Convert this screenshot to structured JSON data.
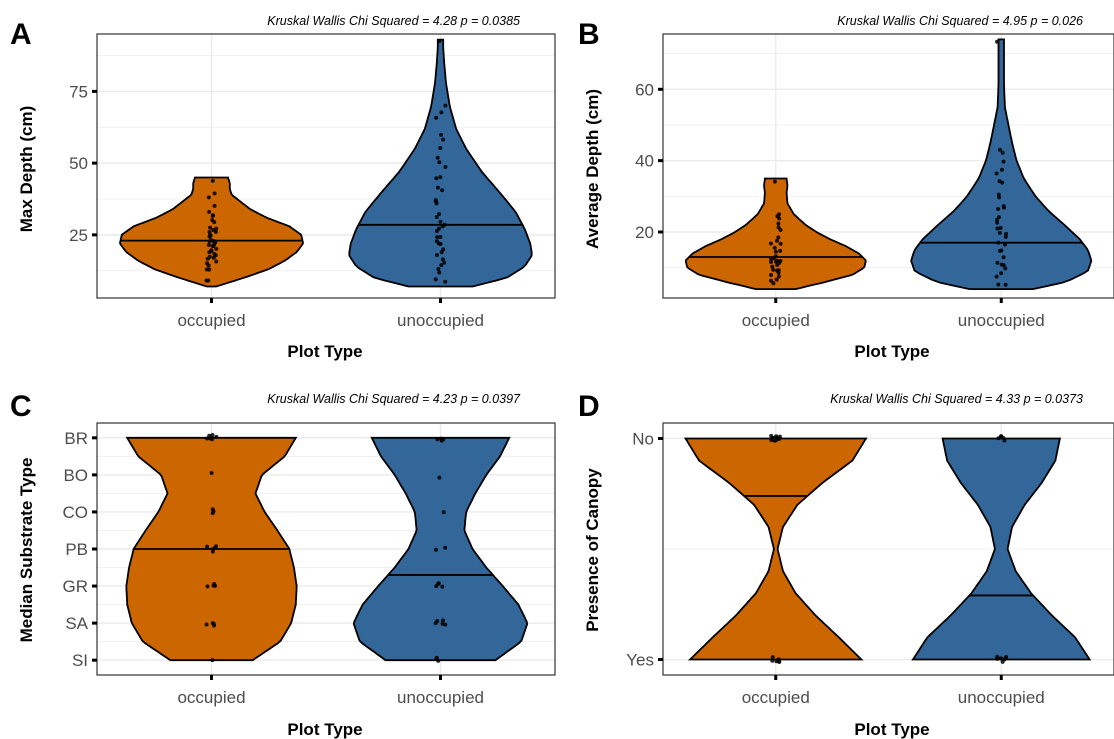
{
  "chart_data": [
    {
      "type": "violin",
      "panel_label": "A",
      "subtitle": "Kruskal Wallis Chi Squared = 4.28 p = 0.0385",
      "xlabel": "Plot Type",
      "ylabel": "Max Depth (cm)",
      "categories": [
        "occupied",
        "unoccupied"
      ],
      "yticks": [
        25,
        50,
        75
      ],
      "ylim": [
        3,
        95
      ],
      "grid": true,
      "colors": [
        "#CC6600",
        "#336699"
      ],
      "series": [
        {
          "category": "occupied",
          "range": [
            7,
            45
          ],
          "median": 23,
          "density": [
            [
              7,
              0.05
            ],
            [
              10,
              0.35
            ],
            [
              13,
              0.62
            ],
            [
              16,
              0.8
            ],
            [
              19,
              0.93
            ],
            [
              22,
              1.0
            ],
            [
              25,
              0.98
            ],
            [
              28,
              0.85
            ],
            [
              31,
              0.6
            ],
            [
              34,
              0.42
            ],
            [
              37,
              0.3
            ],
            [
              39,
              0.22
            ],
            [
              41,
              0.2
            ],
            [
              43,
              0.2
            ],
            [
              45,
              0.18
            ]
          ],
          "points": [
            8,
            10,
            12,
            13,
            14,
            15,
            16,
            16,
            17,
            18,
            18,
            19,
            19,
            20,
            20,
            21,
            21,
            21,
            22,
            22,
            22,
            23,
            23,
            23,
            24,
            24,
            25,
            25,
            26,
            27,
            27,
            28,
            29,
            30,
            31,
            32,
            34,
            36,
            38,
            40,
            44
          ]
        },
        {
          "category": "unoccupied",
          "range": [
            7,
            93
          ],
          "median": 28.5,
          "density": [
            [
              7,
              0.35
            ],
            [
              10,
              0.72
            ],
            [
              14,
              0.92
            ],
            [
              18,
              1.0
            ],
            [
              22,
              0.98
            ],
            [
              27,
              0.92
            ],
            [
              33,
              0.82
            ],
            [
              40,
              0.64
            ],
            [
              47,
              0.45
            ],
            [
              55,
              0.28
            ],
            [
              62,
              0.17
            ],
            [
              70,
              0.1
            ],
            [
              78,
              0.06
            ],
            [
              85,
              0.04
            ],
            [
              90,
              0.03
            ],
            [
              93,
              0.03
            ]
          ],
          "points": [
            8,
            10,
            12,
            13,
            14,
            16,
            17,
            18,
            19,
            20,
            21,
            22,
            23,
            24,
            25,
            26,
            27,
            28,
            29,
            30,
            32,
            33,
            35,
            37,
            38,
            40,
            42,
            44,
            46,
            48,
            50,
            52,
            55,
            58,
            60,
            65,
            68,
            71,
            92
          ]
        }
      ]
    },
    {
      "type": "violin",
      "panel_label": "B",
      "subtitle": "Kruskal Wallis Chi Squared = 4.95 p = 0.026",
      "xlabel": "Plot Type",
      "ylabel": "Average Depth (cm)",
      "categories": [
        "occupied",
        "unoccupied"
      ],
      "yticks": [
        20,
        40,
        60
      ],
      "ylim": [
        1.5,
        75.5
      ],
      "grid": true,
      "colors": [
        "#CC6600",
        "#336699"
      ],
      "series": [
        {
          "category": "occupied",
          "range": [
            4,
            35
          ],
          "median": 13,
          "density": [
            [
              4,
              0.22
            ],
            [
              6,
              0.55
            ],
            [
              8,
              0.85
            ],
            [
              10,
              0.98
            ],
            [
              12,
              1.0
            ],
            [
              14,
              0.92
            ],
            [
              16,
              0.78
            ],
            [
              18,
              0.6
            ],
            [
              20,
              0.45
            ],
            [
              22,
              0.33
            ],
            [
              25,
              0.2
            ],
            [
              28,
              0.13
            ],
            [
              31,
              0.12
            ],
            [
              33,
              0.13
            ],
            [
              35,
              0.12
            ]
          ],
          "points": [
            5,
            6,
            7,
            8,
            8,
            9,
            9,
            10,
            10,
            10,
            11,
            11,
            11,
            12,
            12,
            12,
            13,
            13,
            13,
            14,
            14,
            15,
            15,
            16,
            17,
            18,
            19,
            20,
            21,
            22,
            23,
            24,
            25,
            34
          ]
        },
        {
          "category": "unoccupied",
          "range": [
            4,
            74
          ],
          "median": 17,
          "density": [
            [
              4,
              0.35
            ],
            [
              6,
              0.72
            ],
            [
              9,
              0.96
            ],
            [
              12,
              1.0
            ],
            [
              15,
              0.96
            ],
            [
              18,
              0.87
            ],
            [
              22,
              0.7
            ],
            [
              26,
              0.52
            ],
            [
              30,
              0.38
            ],
            [
              35,
              0.25
            ],
            [
              40,
              0.17
            ],
            [
              45,
              0.12
            ],
            [
              50,
              0.08
            ],
            [
              55,
              0.04
            ],
            [
              62,
              0.03
            ],
            [
              70,
              0.03
            ],
            [
              74,
              0.03
            ]
          ],
          "points": [
            5,
            6,
            7,
            8,
            9,
            10,
            11,
            12,
            13,
            14,
            15,
            16,
            17,
            18,
            19,
            20,
            21,
            22,
            23,
            24,
            25,
            26,
            27,
            28,
            30,
            31,
            33,
            35,
            37,
            38,
            40,
            42,
            43,
            73
          ]
        }
      ]
    },
    {
      "type": "violin",
      "panel_label": "C",
      "subtitle": "Kruskal Wallis Chi Squared = 4.23 p = 0.0397",
      "xlabel": "Plot Type",
      "ylabel": "Median Substrate Type",
      "categories": [
        "occupied",
        "unoccupied"
      ],
      "yticks": [
        "SI",
        "SA",
        "GR",
        "PB",
        "CO",
        "BO",
        "BR"
      ],
      "ylim": [
        0.6,
        7.4
      ],
      "grid": true,
      "colors": [
        "#CC6600",
        "#336699"
      ],
      "series": [
        {
          "category": "occupied",
          "range": [
            1,
            7
          ],
          "median": 4,
          "density": [
            [
              1,
              0.45
            ],
            [
              1.5,
              0.75
            ],
            [
              2,
              0.87
            ],
            [
              2.5,
              0.92
            ],
            [
              3,
              0.93
            ],
            [
              3.5,
              0.9
            ],
            [
              4,
              0.85
            ],
            [
              4.5,
              0.72
            ],
            [
              5,
              0.58
            ],
            [
              5.5,
              0.48
            ],
            [
              6,
              0.55
            ],
            [
              6.5,
              0.8
            ],
            [
              7,
              0.92
            ]
          ],
          "points": [
            1,
            2,
            2,
            2,
            2,
            3,
            3,
            3,
            3,
            4,
            4,
            4,
            4,
            4,
            5,
            5,
            5,
            6,
            7,
            7,
            7,
            7,
            7,
            7,
            7
          ]
        },
        {
          "category": "unoccupied",
          "range": [
            1,
            7
          ],
          "median": 3.3,
          "density": [
            [
              1,
              0.6
            ],
            [
              1.5,
              0.88
            ],
            [
              2,
              0.95
            ],
            [
              2.5,
              0.85
            ],
            [
              3,
              0.68
            ],
            [
              3.5,
              0.5
            ],
            [
              4,
              0.35
            ],
            [
              4.5,
              0.26
            ],
            [
              5,
              0.28
            ],
            [
              5.5,
              0.38
            ],
            [
              6,
              0.5
            ],
            [
              6.5,
              0.65
            ],
            [
              7,
              0.75
            ]
          ],
          "points": [
            1,
            1,
            1,
            2,
            2,
            2,
            2,
            2,
            3,
            3,
            3,
            3,
            4,
            4,
            5,
            6,
            7,
            7,
            7,
            7
          ]
        }
      ]
    },
    {
      "type": "violin",
      "panel_label": "D",
      "subtitle": "Kruskal Wallis Chi Squared = 4.33 p = 0.0373",
      "xlabel": "Plot Type",
      "ylabel": "Presence of Canopy",
      "categories": [
        "occupied",
        "unoccupied"
      ],
      "yticks": [
        "Yes",
        "No"
      ],
      "ylim": [
        0.93,
        2.07
      ],
      "grid": true,
      "colors": [
        "#CC6600",
        "#336699"
      ],
      "series": [
        {
          "category": "occupied",
          "range": [
            1,
            2
          ],
          "median": 1.74,
          "density": [
            [
              1,
              0.95
            ],
            [
              1.1,
              0.7
            ],
            [
              1.2,
              0.44
            ],
            [
              1.3,
              0.22
            ],
            [
              1.4,
              0.08
            ],
            [
              1.5,
              0.02
            ],
            [
              1.6,
              0.08
            ],
            [
              1.7,
              0.24
            ],
            [
              1.8,
              0.52
            ],
            [
              1.9,
              0.85
            ],
            [
              2,
              1.0
            ]
          ],
          "points": [
            1,
            1,
            1,
            1,
            1,
            1,
            1,
            2,
            2,
            2,
            2,
            2,
            2,
            2,
            2,
            2,
            2,
            2,
            2
          ]
        },
        {
          "category": "unoccupied",
          "range": [
            1,
            2
          ],
          "median": 1.29,
          "density": [
            [
              1,
              0.98
            ],
            [
              1.1,
              0.82
            ],
            [
              1.2,
              0.56
            ],
            [
              1.3,
              0.33
            ],
            [
              1.4,
              0.16
            ],
            [
              1.5,
              0.07
            ],
            [
              1.6,
              0.12
            ],
            [
              1.7,
              0.26
            ],
            [
              1.8,
              0.45
            ],
            [
              1.9,
              0.6
            ],
            [
              2,
              0.65
            ]
          ],
          "points": [
            1,
            1,
            1,
            1,
            1,
            1,
            1,
            1,
            2,
            2,
            2,
            2,
            2
          ]
        }
      ]
    }
  ]
}
